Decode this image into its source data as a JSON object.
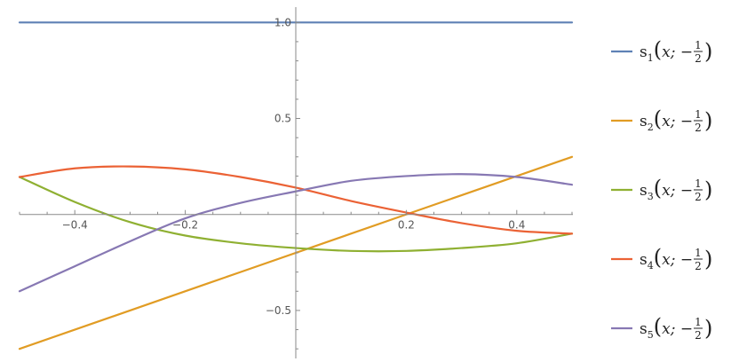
{
  "chart_data": {
    "type": "line",
    "xlim": [
      -0.5,
      0.5
    ],
    "ylim": [
      -0.75,
      1.08
    ],
    "x_ticks": [
      {
        "value": -0.4,
        "label": "−0.4"
      },
      {
        "value": -0.2,
        "label": "−0.2"
      },
      {
        "value": 0.2,
        "label": "0.2"
      },
      {
        "value": 0.4,
        "label": "0.4"
      }
    ],
    "y_ticks": [
      {
        "value": 1.0,
        "label": "1.0"
      },
      {
        "value": 0.5,
        "label": "0.5"
      },
      {
        "value": -0.5,
        "label": "−0.5"
      }
    ],
    "grid": false,
    "legend_position": "right",
    "series": [
      {
        "name": "s1(x; -1/2)",
        "color": "#5E81B5",
        "x": [
          -0.5,
          -0.3,
          -0.1,
          0.1,
          0.3,
          0.5
        ],
        "y": [
          1.0,
          1.0,
          1.0,
          1.0,
          1.0,
          1.0
        ]
      },
      {
        "name": "s2(x; -1/2)",
        "color": "#E19C24",
        "x": [
          -0.5,
          -0.3,
          -0.1,
          0.1,
          0.3,
          0.5
        ],
        "y": [
          -0.7,
          -0.5,
          -0.3,
          -0.1,
          0.1,
          0.3
        ]
      },
      {
        "name": "s3(x; -1/2)",
        "color": "#8FB032",
        "x": [
          -0.5,
          -0.4,
          -0.3,
          -0.2,
          -0.1,
          0.0,
          0.1,
          0.2,
          0.3,
          0.4,
          0.5
        ],
        "y": [
          0.195,
          0.065,
          -0.04,
          -0.11,
          -0.15,
          -0.175,
          -0.19,
          -0.19,
          -0.175,
          -0.15,
          -0.1
        ]
      },
      {
        "name": "s4(x; -1/2)",
        "color": "#EB6235",
        "x": [
          -0.5,
          -0.4,
          -0.3,
          -0.2,
          -0.1,
          0.0,
          0.1,
          0.2,
          0.3,
          0.4,
          0.5
        ],
        "y": [
          0.195,
          0.24,
          0.25,
          0.235,
          0.195,
          0.14,
          0.07,
          0.01,
          -0.045,
          -0.085,
          -0.1
        ]
      },
      {
        "name": "s5(x; -1/2)",
        "color": "#8778B3",
        "x": [
          -0.5,
          -0.4,
          -0.3,
          -0.2,
          -0.1,
          0.0,
          0.1,
          0.2,
          0.3,
          0.4,
          0.5
        ],
        "y": [
          -0.4,
          -0.27,
          -0.14,
          -0.02,
          0.06,
          0.12,
          0.175,
          0.2,
          0.21,
          0.195,
          0.155
        ]
      }
    ],
    "legend": [
      {
        "func": "s",
        "sub": "1",
        "arg": "x; −",
        "num": "1",
        "den": "2",
        "color": "#5E81B5"
      },
      {
        "func": "s",
        "sub": "2",
        "arg": "x; −",
        "num": "1",
        "den": "2",
        "color": "#E19C24"
      },
      {
        "func": "s",
        "sub": "3",
        "arg": "x; −",
        "num": "1",
        "den": "2",
        "color": "#8FB032"
      },
      {
        "func": "s",
        "sub": "4",
        "arg": "x; −",
        "num": "1",
        "den": "2",
        "color": "#EB6235"
      },
      {
        "func": "s",
        "sub": "5",
        "arg": "x; −",
        "num": "1",
        "den": "2",
        "color": "#8778B3"
      }
    ]
  }
}
